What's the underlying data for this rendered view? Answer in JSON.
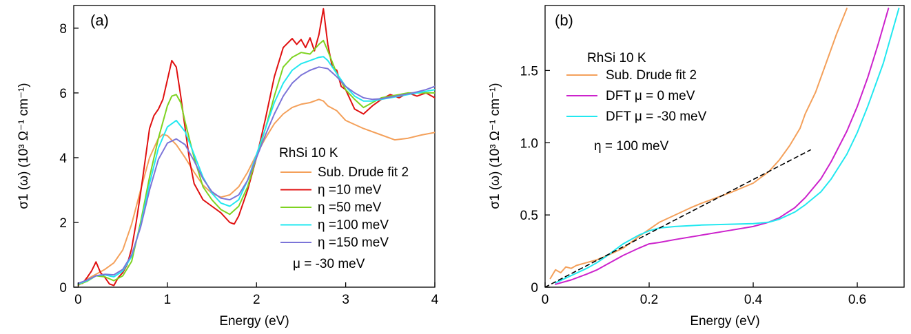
{
  "figure": {
    "panel_a_tag": "(a)",
    "panel_b_tag": "(b)"
  },
  "chart_data": [
    {
      "type": "line",
      "panel": "(a)",
      "xlabel": "Energy (eV)",
      "ylabel": "σ1 (ω) (10³ Ω⁻¹ cm⁻¹)",
      "xlim": [
        -0.05,
        4.0
      ],
      "ylim": [
        0,
        8.7
      ],
      "xticks": [
        0,
        1,
        2,
        3,
        4
      ],
      "xtick_labels": [
        "0",
        "1",
        "2",
        "3",
        "4"
      ],
      "yticks": [
        0,
        2,
        4,
        6,
        8
      ],
      "ytick_labels": [
        "0",
        "2",
        "4",
        "6",
        "8"
      ],
      "legend": {
        "title": "RhSi 10 K",
        "entries": [
          {
            "label": "Sub. Drude fit 2",
            "color": "#f4a05a"
          },
          {
            "label": "η =10 meV",
            "color": "#e01010"
          },
          {
            "label": "η =50 meV",
            "color": "#7ed321"
          },
          {
            "label": "η =100 meV",
            "color": "#22e8f0"
          },
          {
            "label": "η =150 meV",
            "color": "#7b74d8"
          }
        ],
        "note": "μ = -30 meV",
        "placement": "center-right"
      },
      "series": [
        {
          "name": "Sub. Drude fit 2",
          "color": "#f4a05a",
          "x": [
            0,
            0.1,
            0.2,
            0.3,
            0.4,
            0.5,
            0.6,
            0.7,
            0.8,
            0.9,
            0.95,
            1.0,
            1.1,
            1.2,
            1.3,
            1.4,
            1.5,
            1.6,
            1.7,
            1.8,
            1.9,
            2.0,
            2.1,
            2.2,
            2.3,
            2.4,
            2.5,
            2.6,
            2.7,
            2.75,
            2.8,
            2.9,
            3.0,
            3.2,
            3.4,
            3.55,
            3.7,
            3.85,
            4.0
          ],
          "y": [
            0.05,
            0.25,
            0.4,
            0.55,
            0.75,
            1.15,
            1.95,
            3.0,
            4.0,
            4.6,
            4.72,
            4.68,
            4.4,
            4.0,
            3.55,
            3.15,
            2.9,
            2.78,
            2.85,
            3.1,
            3.55,
            4.1,
            4.6,
            5.05,
            5.35,
            5.55,
            5.65,
            5.7,
            5.8,
            5.75,
            5.6,
            5.45,
            5.15,
            4.9,
            4.7,
            4.55,
            4.6,
            4.7,
            4.78
          ]
        },
        {
          "name": "η =10 meV",
          "color": "#e01010",
          "x": [
            0,
            0.05,
            0.1,
            0.15,
            0.2,
            0.25,
            0.3,
            0.35,
            0.4,
            0.45,
            0.5,
            0.55,
            0.6,
            0.65,
            0.7,
            0.75,
            0.8,
            0.85,
            0.9,
            0.95,
            1.0,
            1.05,
            1.1,
            1.15,
            1.2,
            1.25,
            1.3,
            1.4,
            1.5,
            1.6,
            1.7,
            1.75,
            1.8,
            1.9,
            2.0,
            2.1,
            2.2,
            2.3,
            2.4,
            2.45,
            2.5,
            2.55,
            2.6,
            2.65,
            2.7,
            2.75,
            2.8,
            2.85,
            2.9,
            2.95,
            3.0,
            3.1,
            3.2,
            3.3,
            3.4,
            3.5,
            3.6,
            3.7,
            3.8,
            3.9,
            4.0
          ],
          "y": [
            0.1,
            0.12,
            0.3,
            0.5,
            0.78,
            0.45,
            0.3,
            0.1,
            0.05,
            0.3,
            0.45,
            0.7,
            1.2,
            2.0,
            2.9,
            3.9,
            4.9,
            5.3,
            5.5,
            5.8,
            6.4,
            7.0,
            6.8,
            5.9,
            4.9,
            3.9,
            3.2,
            2.7,
            2.5,
            2.3,
            2.0,
            1.95,
            2.2,
            3.0,
            4.0,
            5.2,
            6.5,
            7.4,
            7.68,
            7.5,
            7.65,
            7.4,
            7.7,
            7.3,
            7.8,
            8.6,
            7.5,
            6.8,
            6.7,
            6.2,
            6.1,
            5.5,
            5.35,
            5.6,
            5.8,
            5.95,
            5.85,
            6.0,
            5.9,
            6.0,
            5.85
          ]
        },
        {
          "name": "η =50 meV",
          "color": "#7ed321",
          "x": [
            0,
            0.1,
            0.2,
            0.3,
            0.4,
            0.5,
            0.6,
            0.7,
            0.8,
            0.9,
            1.0,
            1.05,
            1.1,
            1.15,
            1.2,
            1.3,
            1.4,
            1.5,
            1.6,
            1.7,
            1.8,
            1.9,
            2.0,
            2.1,
            2.2,
            2.3,
            2.4,
            2.5,
            2.6,
            2.7,
            2.75,
            2.8,
            2.9,
            3.0,
            3.1,
            3.2,
            3.3,
            3.4,
            3.5,
            3.6,
            3.7,
            3.8,
            3.9,
            4.0
          ],
          "y": [
            0.08,
            0.18,
            0.35,
            0.32,
            0.2,
            0.35,
            0.8,
            2.0,
            3.4,
            4.6,
            5.6,
            5.9,
            5.95,
            5.7,
            5.1,
            4.0,
            3.1,
            2.7,
            2.4,
            2.25,
            2.5,
            3.1,
            4.0,
            4.9,
            5.9,
            6.8,
            7.1,
            7.25,
            7.2,
            7.5,
            7.62,
            7.3,
            6.6,
            6.1,
            5.8,
            5.55,
            5.7,
            5.85,
            5.9,
            5.95,
            6.0,
            6.0,
            6.0,
            6.0
          ]
        },
        {
          "name": "η =100 meV",
          "color": "#22e8f0",
          "x": [
            0,
            0.1,
            0.2,
            0.3,
            0.4,
            0.5,
            0.6,
            0.7,
            0.8,
            0.9,
            1.0,
            1.1,
            1.2,
            1.3,
            1.4,
            1.5,
            1.6,
            1.7,
            1.8,
            1.9,
            2.0,
            2.1,
            2.2,
            2.3,
            2.4,
            2.5,
            2.6,
            2.7,
            2.75,
            2.8,
            2.9,
            3.0,
            3.1,
            3.2,
            3.3,
            3.4,
            3.5,
            3.6,
            3.7,
            3.8,
            3.9,
            4.0
          ],
          "y": [
            0.1,
            0.2,
            0.35,
            0.38,
            0.32,
            0.5,
            0.95,
            1.9,
            3.2,
            4.3,
            4.95,
            5.15,
            4.8,
            4.1,
            3.4,
            2.9,
            2.6,
            2.5,
            2.7,
            3.3,
            4.1,
            4.9,
            5.7,
            6.3,
            6.7,
            6.9,
            7.0,
            7.1,
            7.12,
            7.0,
            6.6,
            6.2,
            5.9,
            5.75,
            5.75,
            5.8,
            5.85,
            5.9,
            5.95,
            6.0,
            6.05,
            6.1
          ]
        },
        {
          "name": "η =150 meV",
          "color": "#7b74d8",
          "x": [
            0,
            0.1,
            0.2,
            0.3,
            0.4,
            0.5,
            0.6,
            0.7,
            0.8,
            0.9,
            1.0,
            1.1,
            1.2,
            1.3,
            1.4,
            1.5,
            1.6,
            1.7,
            1.8,
            1.9,
            2.0,
            2.1,
            2.2,
            2.3,
            2.4,
            2.5,
            2.6,
            2.7,
            2.8,
            2.9,
            3.0,
            3.1,
            3.2,
            3.3,
            3.4,
            3.5,
            3.6,
            3.7,
            3.8,
            3.9,
            4.0
          ],
          "y": [
            0.12,
            0.22,
            0.35,
            0.4,
            0.38,
            0.55,
            1.0,
            1.85,
            3.0,
            3.95,
            4.45,
            4.58,
            4.4,
            3.9,
            3.35,
            2.95,
            2.75,
            2.7,
            2.85,
            3.3,
            4.0,
            4.7,
            5.35,
            5.9,
            6.3,
            6.55,
            6.7,
            6.8,
            6.75,
            6.5,
            6.2,
            6.0,
            5.85,
            5.8,
            5.82,
            5.87,
            5.92,
            5.97,
            6.03,
            6.1,
            6.2
          ]
        }
      ]
    },
    {
      "type": "line",
      "panel": "(b)",
      "xlabel": "Energy (eV)",
      "ylabel": "σ1 (ω) (10³ Ω⁻¹ cm⁻¹)",
      "xlim": [
        0,
        0.69
      ],
      "ylim": [
        0,
        1.95
      ],
      "xticks": [
        0,
        0.2,
        0.4,
        0.6
      ],
      "xtick_labels": [
        "0",
        "0.2",
        "0.4",
        "0.6"
      ],
      "yticks": [
        0,
        0.5,
        1.0,
        1.5
      ],
      "ytick_labels": [
        "0",
        "0.5",
        "1.0",
        "1.5"
      ],
      "legend": {
        "title": "RhSi 10 K",
        "entries": [
          {
            "label": "Sub. Drude fit 2",
            "color": "#f4a05a"
          },
          {
            "label": "DFT μ = 0 meV",
            "color": "#cc22cc"
          },
          {
            "label": "DFT μ = -30 meV",
            "color": "#22e8f0"
          }
        ],
        "note": "η = 100 meV",
        "placement": "top-left"
      },
      "series": [
        {
          "name": "Sub. Drude fit 2",
          "color": "#f4a05a",
          "x": [
            0.01,
            0.02,
            0.03,
            0.04,
            0.05,
            0.06,
            0.08,
            0.1,
            0.12,
            0.15,
            0.18,
            0.2,
            0.22,
            0.25,
            0.28,
            0.3,
            0.33,
            0.36,
            0.4,
            0.43,
            0.45,
            0.47,
            0.49,
            0.5,
            0.52,
            0.54,
            0.56,
            0.58
          ],
          "y": [
            0.06,
            0.12,
            0.1,
            0.14,
            0.13,
            0.15,
            0.17,
            0.19,
            0.22,
            0.27,
            0.35,
            0.4,
            0.45,
            0.5,
            0.55,
            0.58,
            0.62,
            0.66,
            0.72,
            0.8,
            0.88,
            0.98,
            1.1,
            1.2,
            1.35,
            1.55,
            1.75,
            1.93
          ]
        },
        {
          "name": "DFT μ = 0 meV",
          "color": "#cc22cc",
          "x": [
            0.02,
            0.05,
            0.08,
            0.1,
            0.12,
            0.15,
            0.18,
            0.2,
            0.22,
            0.25,
            0.3,
            0.35,
            0.4,
            0.43,
            0.45,
            0.48,
            0.5,
            0.53,
            0.55,
            0.58,
            0.6,
            0.62,
            0.64,
            0.66
          ],
          "y": [
            0.02,
            0.05,
            0.09,
            0.12,
            0.16,
            0.22,
            0.27,
            0.3,
            0.31,
            0.33,
            0.36,
            0.39,
            0.42,
            0.45,
            0.48,
            0.55,
            0.62,
            0.75,
            0.87,
            1.08,
            1.25,
            1.45,
            1.68,
            1.93
          ]
        },
        {
          "name": "DFT μ = -30 meV",
          "color": "#22e8f0",
          "x": [
            0.02,
            0.05,
            0.08,
            0.1,
            0.12,
            0.15,
            0.18,
            0.2,
            0.22,
            0.25,
            0.3,
            0.35,
            0.4,
            0.43,
            0.45,
            0.48,
            0.5,
            0.53,
            0.55,
            0.58,
            0.6,
            0.62,
            0.65,
            0.68
          ],
          "y": [
            0.03,
            0.08,
            0.13,
            0.17,
            0.22,
            0.3,
            0.36,
            0.39,
            0.41,
            0.42,
            0.43,
            0.435,
            0.44,
            0.45,
            0.47,
            0.52,
            0.57,
            0.66,
            0.75,
            0.92,
            1.07,
            1.25,
            1.55,
            1.93
          ]
        },
        {
          "name": "linear guide",
          "color": "#000000",
          "dashed": true,
          "x": [
            0.0,
            0.51
          ],
          "y": [
            0.0,
            0.95
          ]
        }
      ]
    }
  ]
}
